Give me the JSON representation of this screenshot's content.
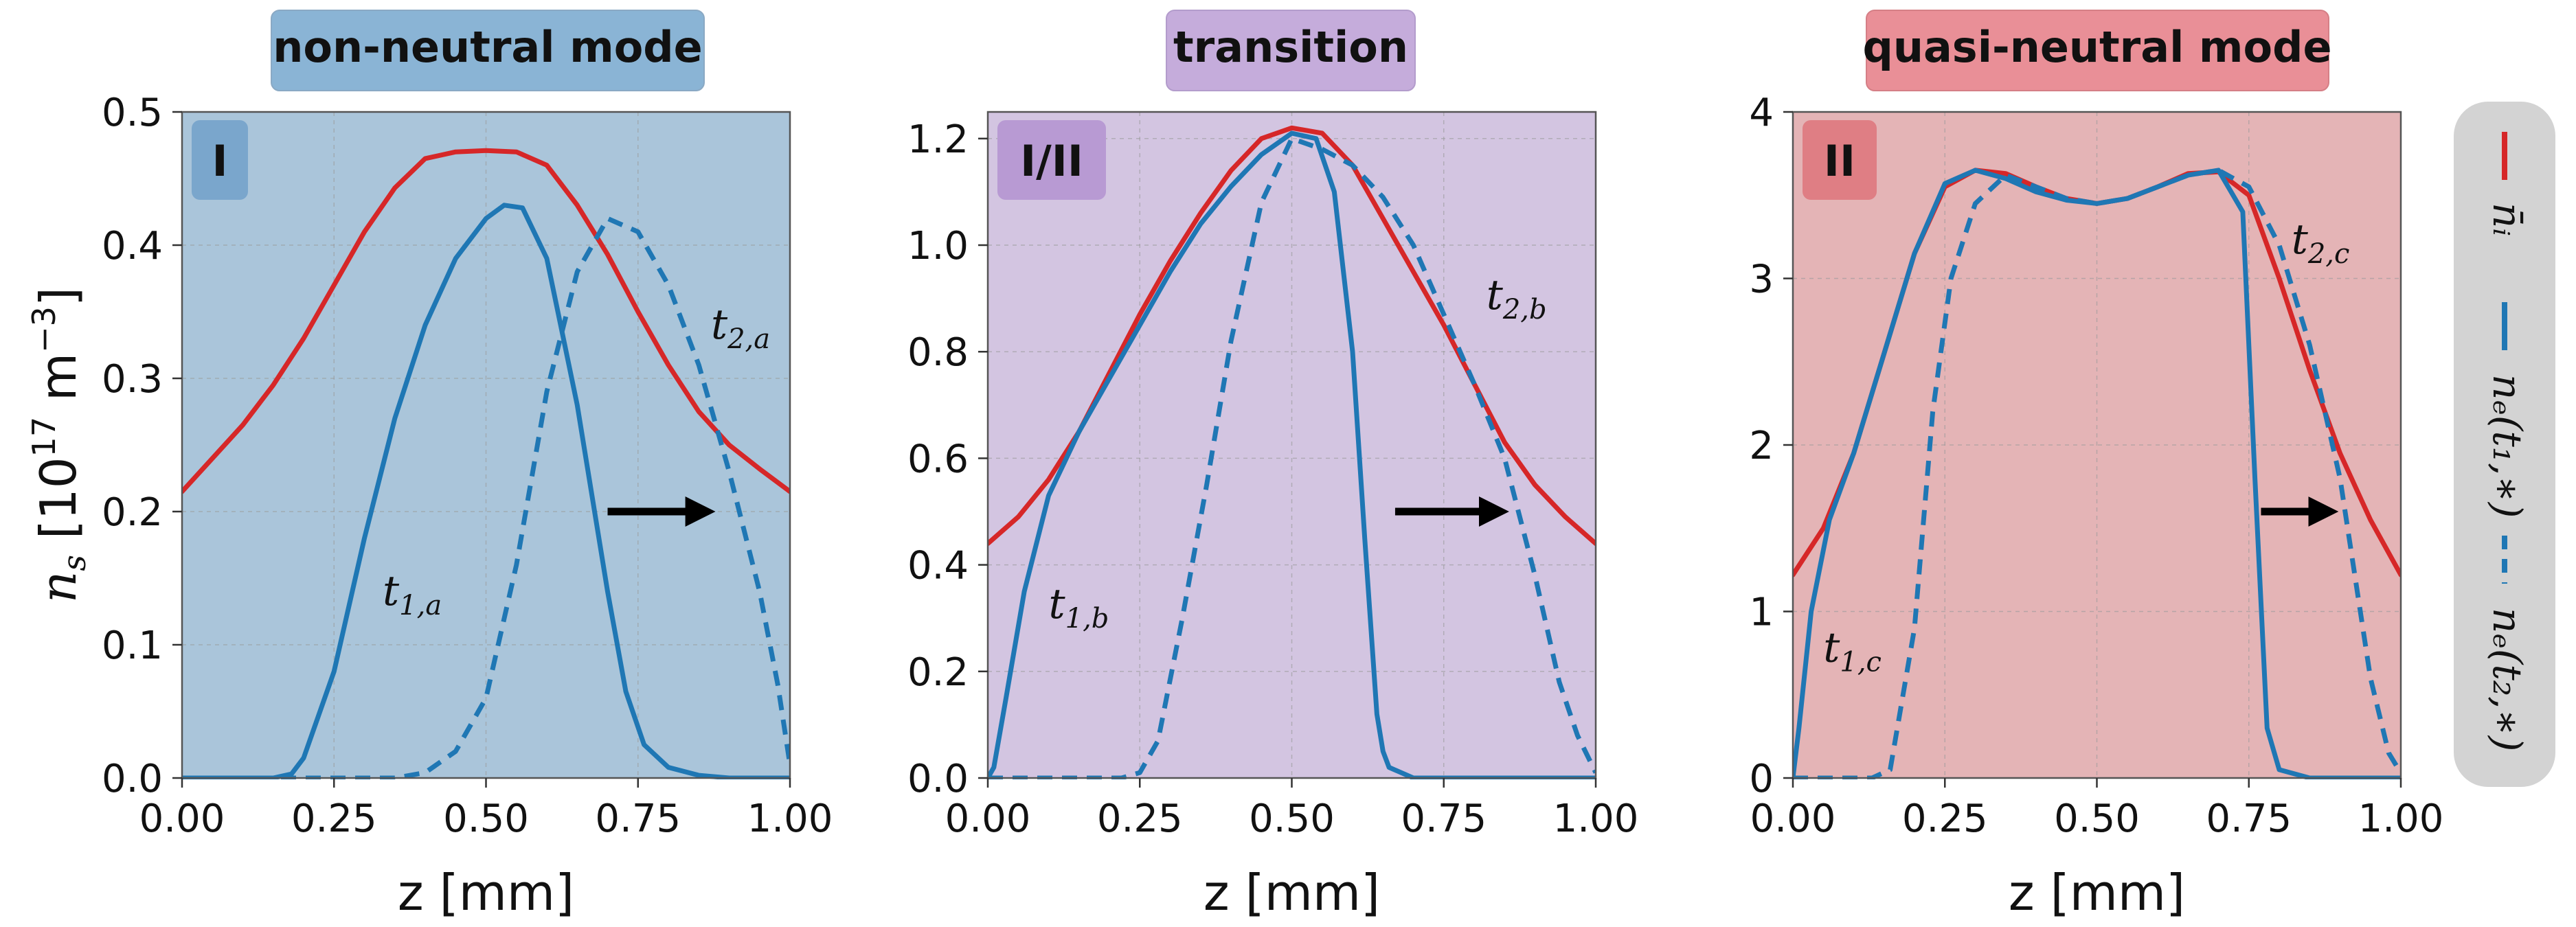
{
  "colors": {
    "ion": "#d62728",
    "electron": "#1f77b4",
    "legend_bg": "#d3d3d3",
    "grid": "#9a9a9a"
  },
  "ylabel": {
    "main": "n",
    "sub": "s",
    "unit_prefix": " [10",
    "unit_exp": "17",
    "unit_mid": " m",
    "unit_exp2": "−3",
    "unit_suffix": "]"
  },
  "legend": {
    "entries": [
      {
        "label": "n̄ᵢ",
        "style": "solid",
        "color_key": "ion"
      },
      {
        "label": "nₑ(t₁,∗)",
        "style": "solid",
        "color_key": "electron"
      },
      {
        "label": "nₑ(t₂,∗)",
        "style": "dashed",
        "color_key": "electron"
      }
    ]
  },
  "chart_data": [
    {
      "type": "line",
      "title": "non-neutral mode",
      "title_bg": "#8ab4d5",
      "bg": "#aac5da",
      "tag": "I",
      "tag_bg": "#7aa6cc",
      "xlabel": "z [mm]",
      "xlim": [
        0,
        1
      ],
      "ylim": [
        0,
        0.5
      ],
      "xticks": [
        0,
        0.25,
        0.5,
        0.75,
        1.0
      ],
      "xtick_labels": [
        "0.00",
        "0.25",
        "0.50",
        "0.75",
        "1.00"
      ],
      "yticks": [
        0,
        0.1,
        0.2,
        0.3,
        0.4,
        0.5
      ],
      "ytick_labels": [
        "0.0",
        "0.1",
        "0.2",
        "0.3",
        "0.4",
        "0.5"
      ],
      "series": [
        {
          "name": "ion",
          "style": "solid",
          "color_key": "ion",
          "x": [
            0,
            0.05,
            0.1,
            0.15,
            0.2,
            0.25,
            0.3,
            0.35,
            0.4,
            0.45,
            0.5,
            0.55,
            0.6,
            0.65,
            0.7,
            0.75,
            0.8,
            0.85,
            0.9,
            0.95,
            1.0
          ],
          "y": [
            0.215,
            0.24,
            0.265,
            0.295,
            0.33,
            0.37,
            0.41,
            0.443,
            0.465,
            0.47,
            0.471,
            0.47,
            0.46,
            0.43,
            0.393,
            0.35,
            0.31,
            0.275,
            0.25,
            0.232,
            0.215
          ]
        },
        {
          "name": "t1",
          "style": "solid",
          "color_key": "electron",
          "x": [
            0,
            0.15,
            0.18,
            0.2,
            0.25,
            0.3,
            0.35,
            0.4,
            0.45,
            0.5,
            0.53,
            0.56,
            0.6,
            0.65,
            0.7,
            0.73,
            0.76,
            0.8,
            0.85,
            0.9,
            1.0
          ],
          "y": [
            0,
            0,
            0.003,
            0.015,
            0.08,
            0.18,
            0.27,
            0.34,
            0.39,
            0.42,
            0.43,
            0.428,
            0.39,
            0.28,
            0.14,
            0.065,
            0.025,
            0.008,
            0.002,
            0,
            0
          ]
        },
        {
          "name": "t2",
          "style": "dashed",
          "color_key": "electron",
          "x": [
            0,
            0.35,
            0.4,
            0.45,
            0.5,
            0.55,
            0.6,
            0.65,
            0.7,
            0.75,
            0.8,
            0.85,
            0.9,
            0.95,
            0.98,
            1.0
          ],
          "y": [
            0,
            0,
            0.004,
            0.02,
            0.06,
            0.16,
            0.29,
            0.38,
            0.42,
            0.41,
            0.37,
            0.31,
            0.23,
            0.14,
            0.07,
            0.01
          ]
        }
      ],
      "annotations": [
        {
          "main": "t",
          "sub": "1,a",
          "x": 0.33,
          "y": 0.13
        },
        {
          "main": "t",
          "sub": "2,a",
          "x": 0.87,
          "y": 0.33
        }
      ],
      "arrow": {
        "x0": 0.7,
        "x1": 0.88,
        "y": 0.2
      }
    },
    {
      "type": "line",
      "title": "transition",
      "title_bg": "#c5acdb",
      "bg": "#d3c5e1",
      "tag": "I/II",
      "tag_bg": "#b89ad3",
      "xlabel": "z [mm]",
      "xlim": [
        0,
        1
      ],
      "ylim": [
        0,
        1.25
      ],
      "xticks": [
        0,
        0.25,
        0.5,
        0.75,
        1.0
      ],
      "xtick_labels": [
        "0.00",
        "0.25",
        "0.50",
        "0.75",
        "1.00"
      ],
      "yticks": [
        0,
        0.2,
        0.4,
        0.6,
        0.8,
        1.0,
        1.2
      ],
      "ytick_labels": [
        "0.0",
        "0.2",
        "0.4",
        "0.6",
        "0.8",
        "1.0",
        "1.2"
      ],
      "series": [
        {
          "name": "ion",
          "style": "solid",
          "color_key": "ion",
          "x": [
            0,
            0.05,
            0.1,
            0.15,
            0.2,
            0.25,
            0.3,
            0.35,
            0.4,
            0.45,
            0.5,
            0.55,
            0.6,
            0.65,
            0.7,
            0.75,
            0.8,
            0.85,
            0.9,
            0.95,
            1.0
          ],
          "y": [
            0.44,
            0.49,
            0.56,
            0.65,
            0.76,
            0.87,
            0.97,
            1.06,
            1.14,
            1.2,
            1.22,
            1.21,
            1.15,
            1.05,
            0.95,
            0.85,
            0.74,
            0.63,
            0.55,
            0.49,
            0.44
          ]
        },
        {
          "name": "t1",
          "style": "solid",
          "color_key": "electron",
          "x": [
            0,
            0.01,
            0.03,
            0.06,
            0.1,
            0.15,
            0.2,
            0.25,
            0.3,
            0.35,
            0.4,
            0.45,
            0.5,
            0.54,
            0.57,
            0.6,
            0.62,
            0.64,
            0.65,
            0.66,
            0.7,
            1.0
          ],
          "y": [
            0,
            0.02,
            0.15,
            0.35,
            0.53,
            0.65,
            0.75,
            0.85,
            0.95,
            1.04,
            1.11,
            1.17,
            1.21,
            1.2,
            1.1,
            0.8,
            0.45,
            0.12,
            0.05,
            0.02,
            0,
            0
          ]
        },
        {
          "name": "t2",
          "style": "dashed",
          "color_key": "electron",
          "x": [
            0,
            0.22,
            0.25,
            0.28,
            0.32,
            0.36,
            0.4,
            0.45,
            0.5,
            0.55,
            0.6,
            0.65,
            0.7,
            0.75,
            0.8,
            0.85,
            0.9,
            0.94,
            0.97,
            1.0
          ],
          "y": [
            0,
            0,
            0.01,
            0.07,
            0.3,
            0.55,
            0.82,
            1.08,
            1.2,
            1.18,
            1.15,
            1.09,
            1.0,
            0.87,
            0.74,
            0.6,
            0.38,
            0.18,
            0.08,
            0.01
          ]
        }
      ],
      "annotations": [
        {
          "main": "t",
          "sub": "1,b",
          "x": 0.1,
          "y": 0.3
        },
        {
          "main": "t",
          "sub": "2,b",
          "x": 0.82,
          "y": 0.88
        }
      ],
      "arrow": {
        "x0": 0.67,
        "x1": 0.86,
        "y": 0.5
      }
    },
    {
      "type": "line",
      "title": "quasi-neutral mode",
      "title_bg": "#e98f97",
      "bg": "#e4b4b6",
      "tag": "II",
      "tag_bg": "#df7e84",
      "xlabel": "z [mm]",
      "xlim": [
        0,
        1
      ],
      "ylim": [
        0,
        4
      ],
      "xticks": [
        0,
        0.25,
        0.5,
        0.75,
        1.0
      ],
      "xtick_labels": [
        "0.00",
        "0.25",
        "0.50",
        "0.75",
        "1.00"
      ],
      "yticks": [
        0,
        1,
        2,
        3,
        4
      ],
      "ytick_labels": [
        "0",
        "1",
        "2",
        "3",
        "4"
      ],
      "series": [
        {
          "name": "ion",
          "style": "solid",
          "color_key": "ion",
          "x": [
            0,
            0.05,
            0.1,
            0.15,
            0.2,
            0.25,
            0.3,
            0.35,
            0.4,
            0.45,
            0.5,
            0.55,
            0.6,
            0.65,
            0.7,
            0.75,
            0.8,
            0.85,
            0.9,
            0.95,
            1.0
          ],
          "y": [
            1.22,
            1.5,
            1.95,
            2.55,
            3.15,
            3.55,
            3.65,
            3.63,
            3.55,
            3.48,
            3.45,
            3.48,
            3.55,
            3.63,
            3.64,
            3.5,
            3.0,
            2.45,
            1.95,
            1.55,
            1.22
          ]
        },
        {
          "name": "t1",
          "style": "solid",
          "color_key": "electron",
          "x": [
            0,
            0.01,
            0.03,
            0.06,
            0.1,
            0.15,
            0.2,
            0.25,
            0.3,
            0.35,
            0.4,
            0.45,
            0.5,
            0.55,
            0.6,
            0.65,
            0.7,
            0.74,
            0.76,
            0.78,
            0.8,
            0.85,
            1.0
          ],
          "y": [
            0,
            0.3,
            1.0,
            1.55,
            1.95,
            2.55,
            3.15,
            3.57,
            3.65,
            3.6,
            3.52,
            3.47,
            3.45,
            3.48,
            3.55,
            3.62,
            3.65,
            3.4,
            1.8,
            0.3,
            0.05,
            0,
            0
          ]
        },
        {
          "name": "t2",
          "style": "dashed",
          "color_key": "electron",
          "x": [
            0,
            0.13,
            0.16,
            0.2,
            0.23,
            0.26,
            0.3,
            0.35,
            0.4,
            0.45,
            0.5,
            0.55,
            0.6,
            0.65,
            0.7,
            0.75,
            0.8,
            0.85,
            0.9,
            0.95,
            0.98,
            1.0
          ],
          "y": [
            0,
            0,
            0.05,
            0.9,
            2.2,
            3.0,
            3.45,
            3.62,
            3.55,
            3.48,
            3.45,
            3.48,
            3.55,
            3.62,
            3.65,
            3.55,
            3.2,
            2.6,
            1.8,
            0.6,
            0.15,
            0.03
          ]
        }
      ],
      "annotations": [
        {
          "main": "t",
          "sub": "1,c",
          "x": 0.05,
          "y": 0.7
        },
        {
          "main": "t",
          "sub": "2,c",
          "x": 0.82,
          "y": 3.15
        }
      ],
      "arrow": {
        "x0": 0.77,
        "x1": 0.9,
        "y": 1.6
      }
    }
  ]
}
